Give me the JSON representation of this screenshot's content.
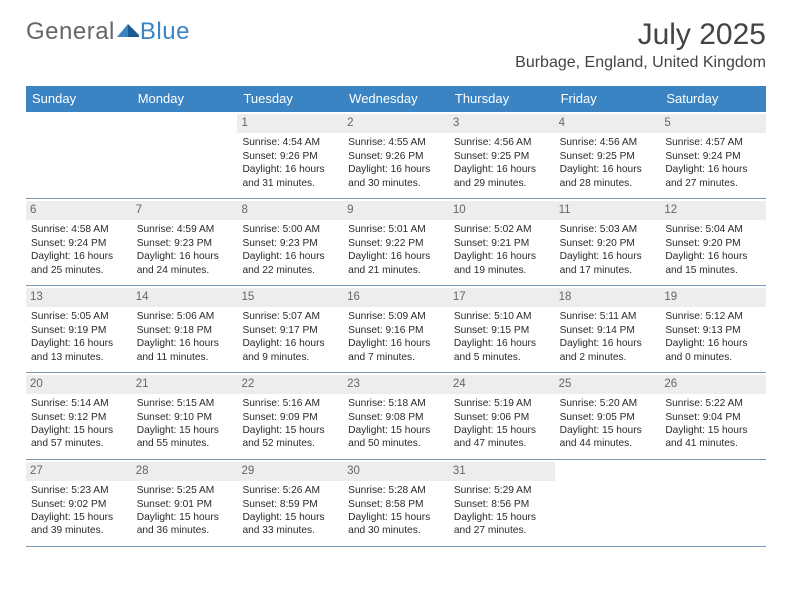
{
  "brand": {
    "part1": "General",
    "part2": "Blue"
  },
  "title": "July 2025",
  "location": "Burbage, England, United Kingdom",
  "colors": {
    "header_bg": "#3a84c4",
    "row_border": "#7a98b5",
    "daynum_bg": "#eceded",
    "text": "#2a2a2a",
    "brand_blue": "#3a84c4"
  },
  "day_names": [
    "Sunday",
    "Monday",
    "Tuesday",
    "Wednesday",
    "Thursday",
    "Friday",
    "Saturday"
  ],
  "weeks": [
    [
      null,
      null,
      {
        "n": "1",
        "sunrise": "4:54 AM",
        "sunset": "9:26 PM",
        "daylight": "16 hours and 31 minutes."
      },
      {
        "n": "2",
        "sunrise": "4:55 AM",
        "sunset": "9:26 PM",
        "daylight": "16 hours and 30 minutes."
      },
      {
        "n": "3",
        "sunrise": "4:56 AM",
        "sunset": "9:25 PM",
        "daylight": "16 hours and 29 minutes."
      },
      {
        "n": "4",
        "sunrise": "4:56 AM",
        "sunset": "9:25 PM",
        "daylight": "16 hours and 28 minutes."
      },
      {
        "n": "5",
        "sunrise": "4:57 AM",
        "sunset": "9:24 PM",
        "daylight": "16 hours and 27 minutes."
      }
    ],
    [
      {
        "n": "6",
        "sunrise": "4:58 AM",
        "sunset": "9:24 PM",
        "daylight": "16 hours and 25 minutes."
      },
      {
        "n": "7",
        "sunrise": "4:59 AM",
        "sunset": "9:23 PM",
        "daylight": "16 hours and 24 minutes."
      },
      {
        "n": "8",
        "sunrise": "5:00 AM",
        "sunset": "9:23 PM",
        "daylight": "16 hours and 22 minutes."
      },
      {
        "n": "9",
        "sunrise": "5:01 AM",
        "sunset": "9:22 PM",
        "daylight": "16 hours and 21 minutes."
      },
      {
        "n": "10",
        "sunrise": "5:02 AM",
        "sunset": "9:21 PM",
        "daylight": "16 hours and 19 minutes."
      },
      {
        "n": "11",
        "sunrise": "5:03 AM",
        "sunset": "9:20 PM",
        "daylight": "16 hours and 17 minutes."
      },
      {
        "n": "12",
        "sunrise": "5:04 AM",
        "sunset": "9:20 PM",
        "daylight": "16 hours and 15 minutes."
      }
    ],
    [
      {
        "n": "13",
        "sunrise": "5:05 AM",
        "sunset": "9:19 PM",
        "daylight": "16 hours and 13 minutes."
      },
      {
        "n": "14",
        "sunrise": "5:06 AM",
        "sunset": "9:18 PM",
        "daylight": "16 hours and 11 minutes."
      },
      {
        "n": "15",
        "sunrise": "5:07 AM",
        "sunset": "9:17 PM",
        "daylight": "16 hours and 9 minutes."
      },
      {
        "n": "16",
        "sunrise": "5:09 AM",
        "sunset": "9:16 PM",
        "daylight": "16 hours and 7 minutes."
      },
      {
        "n": "17",
        "sunrise": "5:10 AM",
        "sunset": "9:15 PM",
        "daylight": "16 hours and 5 minutes."
      },
      {
        "n": "18",
        "sunrise": "5:11 AM",
        "sunset": "9:14 PM",
        "daylight": "16 hours and 2 minutes."
      },
      {
        "n": "19",
        "sunrise": "5:12 AM",
        "sunset": "9:13 PM",
        "daylight": "16 hours and 0 minutes."
      }
    ],
    [
      {
        "n": "20",
        "sunrise": "5:14 AM",
        "sunset": "9:12 PM",
        "daylight": "15 hours and 57 minutes."
      },
      {
        "n": "21",
        "sunrise": "5:15 AM",
        "sunset": "9:10 PM",
        "daylight": "15 hours and 55 minutes."
      },
      {
        "n": "22",
        "sunrise": "5:16 AM",
        "sunset": "9:09 PM",
        "daylight": "15 hours and 52 minutes."
      },
      {
        "n": "23",
        "sunrise": "5:18 AM",
        "sunset": "9:08 PM",
        "daylight": "15 hours and 50 minutes."
      },
      {
        "n": "24",
        "sunrise": "5:19 AM",
        "sunset": "9:06 PM",
        "daylight": "15 hours and 47 minutes."
      },
      {
        "n": "25",
        "sunrise": "5:20 AM",
        "sunset": "9:05 PM",
        "daylight": "15 hours and 44 minutes."
      },
      {
        "n": "26",
        "sunrise": "5:22 AM",
        "sunset": "9:04 PM",
        "daylight": "15 hours and 41 minutes."
      }
    ],
    [
      {
        "n": "27",
        "sunrise": "5:23 AM",
        "sunset": "9:02 PM",
        "daylight": "15 hours and 39 minutes."
      },
      {
        "n": "28",
        "sunrise": "5:25 AM",
        "sunset": "9:01 PM",
        "daylight": "15 hours and 36 minutes."
      },
      {
        "n": "29",
        "sunrise": "5:26 AM",
        "sunset": "8:59 PM",
        "daylight": "15 hours and 33 minutes."
      },
      {
        "n": "30",
        "sunrise": "5:28 AM",
        "sunset": "8:58 PM",
        "daylight": "15 hours and 30 minutes."
      },
      {
        "n": "31",
        "sunrise": "5:29 AM",
        "sunset": "8:56 PM",
        "daylight": "15 hours and 27 minutes."
      },
      null,
      null
    ]
  ],
  "labels": {
    "sunrise_prefix": "Sunrise: ",
    "sunset_prefix": "Sunset: ",
    "daylight_prefix": "Daylight: "
  }
}
